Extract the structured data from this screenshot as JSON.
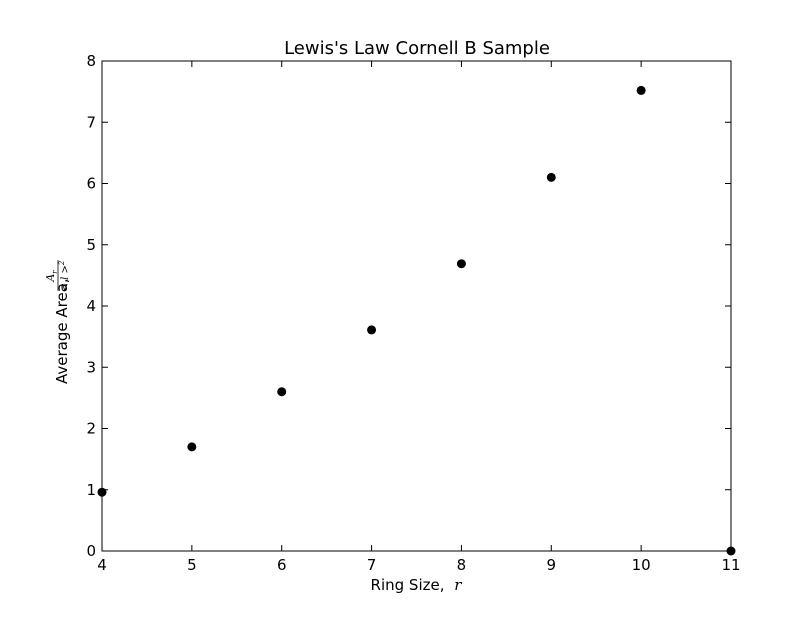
{
  "chart_data": {
    "type": "scatter",
    "title": "Lewis's Law Cornell B Sample",
    "xlabel": "Ring Size,",
    "xlabel_symbol": "r",
    "ylabel": "Average Area,",
    "ylabel_numerator": "A",
    "ylabel_numerator_sub": "r",
    "ylabel_denominator": "< l >",
    "ylabel_denominator_sup": "2",
    "xlim": [
      4,
      11
    ],
    "ylim": [
      0,
      8
    ],
    "x_ticks": [
      4,
      5,
      6,
      7,
      8,
      9,
      10,
      11
    ],
    "y_ticks": [
      0,
      1,
      2,
      3,
      4,
      5,
      6,
      7,
      8
    ],
    "grid": false,
    "marker_color": "#000000",
    "series": [
      {
        "points": [
          {
            "x": 4,
            "y": 0.96
          },
          {
            "x": 5,
            "y": 1.7
          },
          {
            "x": 6,
            "y": 2.6
          },
          {
            "x": 7,
            "y": 3.61
          },
          {
            "x": 8,
            "y": 4.69
          },
          {
            "x": 9,
            "y": 6.1
          },
          {
            "x": 10,
            "y": 7.52
          },
          {
            "x": 11,
            "y": 0.0
          }
        ]
      }
    ]
  }
}
